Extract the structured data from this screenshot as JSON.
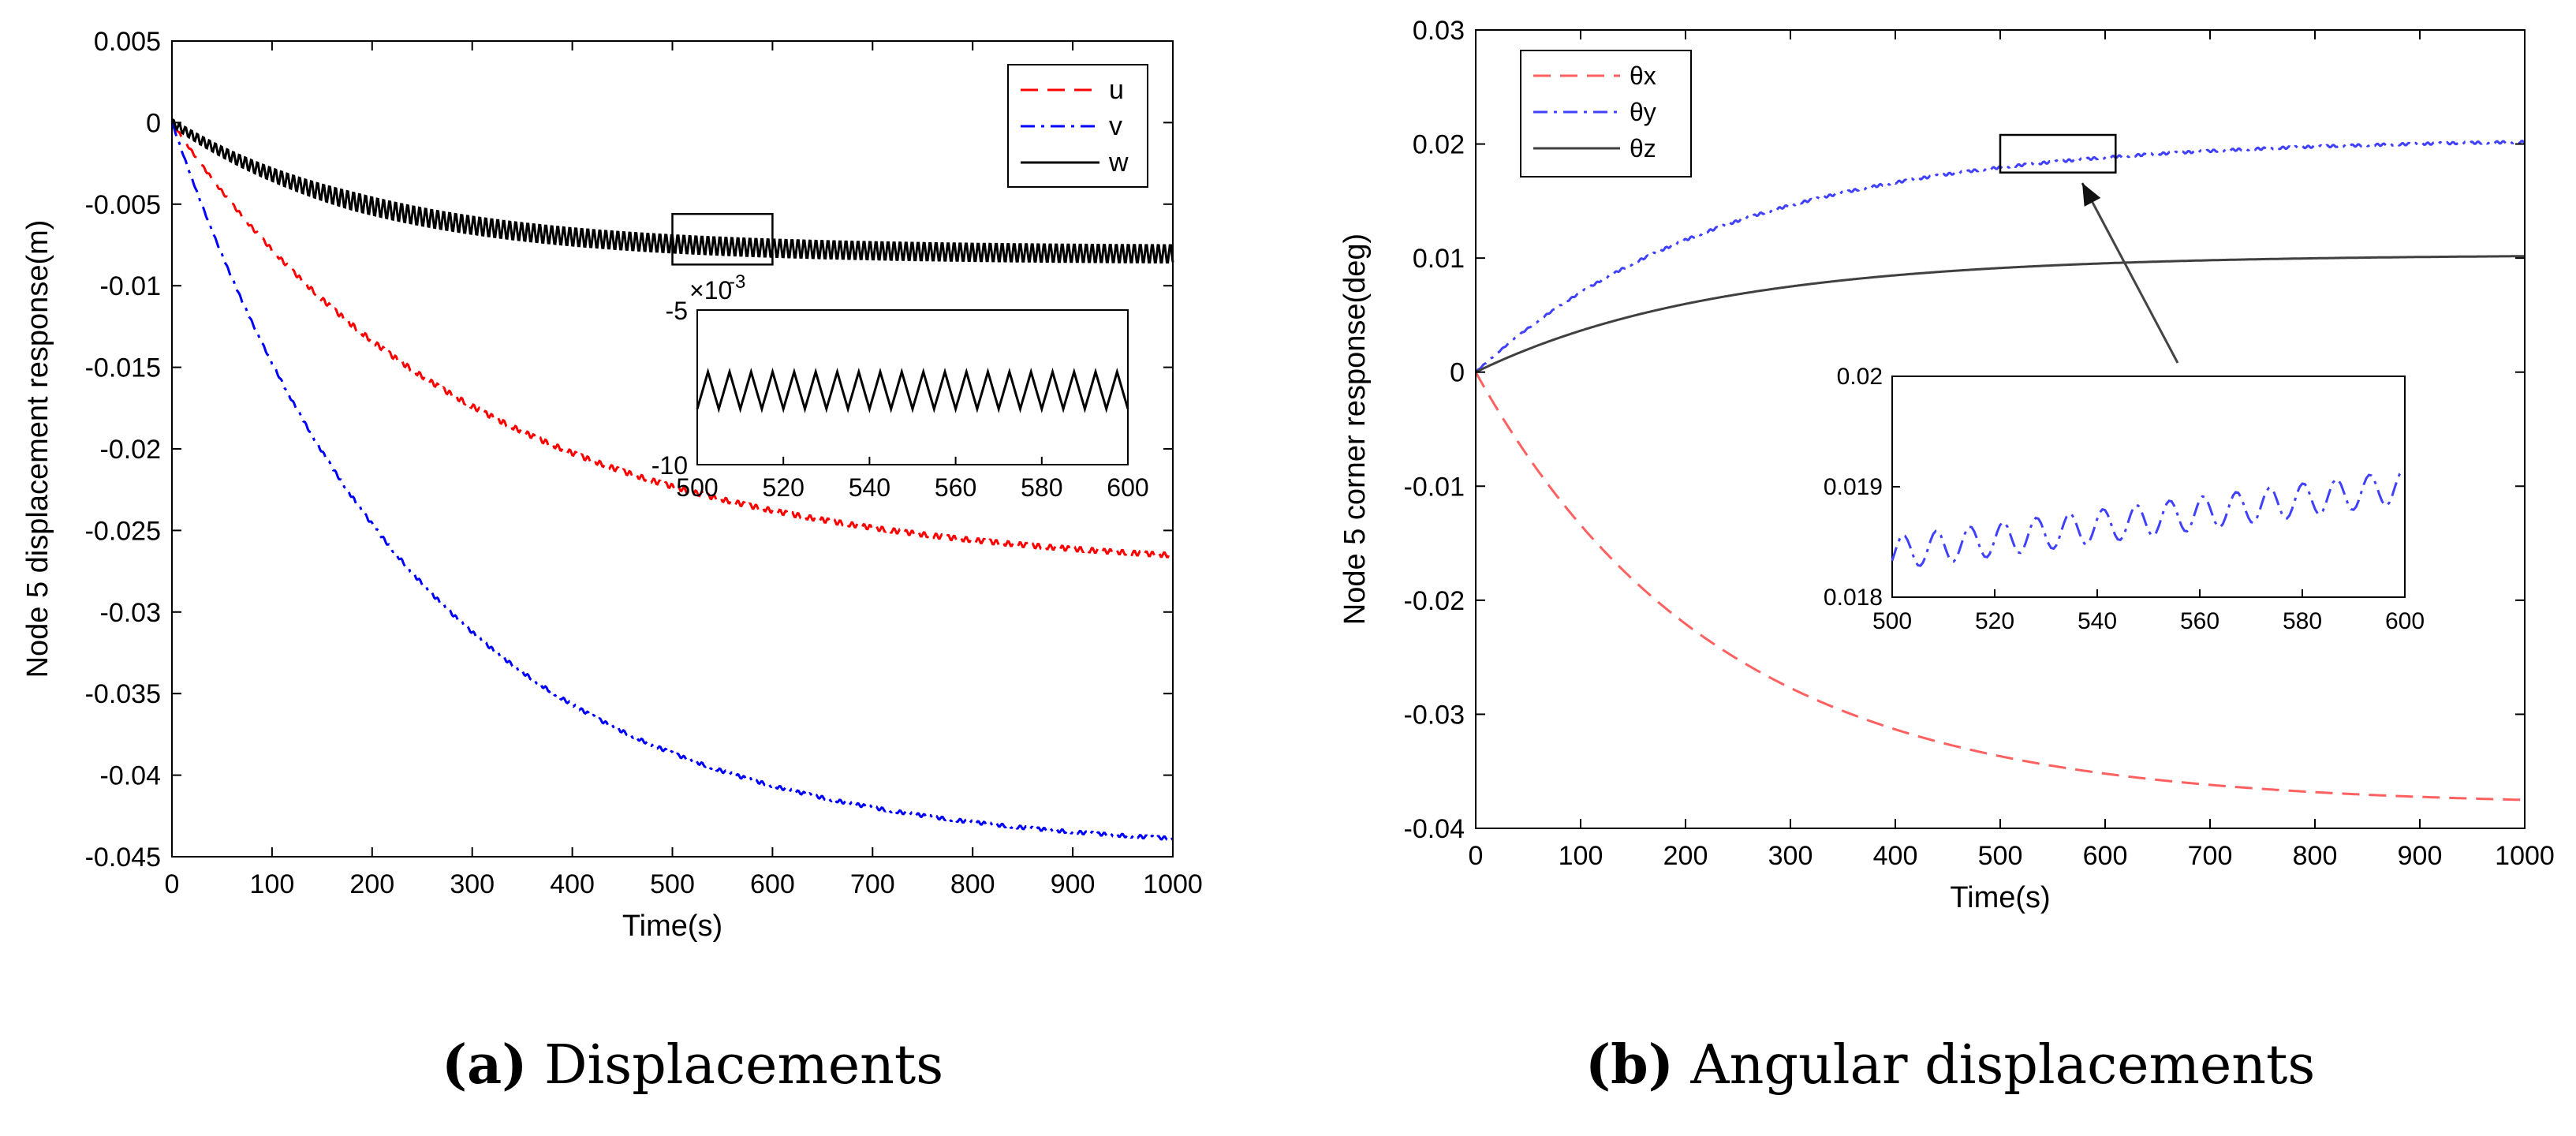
{
  "chart_data": [
    {
      "type": "line",
      "title": "",
      "xlabel": "Time(s)",
      "ylabel": "Node 5 displacement response(m)",
      "xlim": [
        0,
        1000
      ],
      "ylim": [
        -0.045,
        0.005
      ],
      "xticks": [
        0,
        100,
        200,
        300,
        400,
        500,
        600,
        700,
        800,
        900,
        1000
      ],
      "xtick_labels": [
        "0",
        "100",
        "200",
        "300",
        "400",
        "500",
        "600",
        "700",
        "800",
        "900",
        "1000"
      ],
      "yticks": [
        0.005,
        0,
        -0.005,
        -0.01,
        -0.015,
        -0.02,
        -0.025,
        -0.03,
        -0.035,
        -0.04,
        -0.045
      ],
      "ytick_labels": [
        "0.005",
        "0",
        "-0.005",
        "-0.01",
        "-0.015",
        "-0.02",
        "-0.025",
        "-0.03",
        "-0.035",
        "-0.04",
        "-0.045"
      ],
      "legend": [
        "u",
        "v",
        "w"
      ],
      "legend_position": "top-right",
      "series": [
        {
          "name": "u",
          "color": "#ff0000",
          "dash": "dashed",
          "start": 0,
          "final": -0.0275,
          "tau": 300,
          "osc_amp": 0.00015,
          "osc_period": 6
        },
        {
          "name": "v",
          "color": "#0000ff",
          "dash": "dashdot",
          "start": 0,
          "final": -0.0447,
          "tau": 250,
          "osc_amp": 0.0001,
          "osc_period": 6
        },
        {
          "name": "w",
          "color": "#000000",
          "dash": "solid",
          "start": 0,
          "final": -0.0081,
          "tau": 200,
          "osc_amp": 0.0006,
          "osc_period": 6
        }
      ],
      "highlight_box": {
        "x_range": [
          500,
          600
        ],
        "y_range": [
          -0.0087,
          -0.0056
        ]
      },
      "inset": {
        "xlim": [
          500,
          600
        ],
        "ylim": [
          -10,
          -5
        ],
        "xticks": [
          500,
          520,
          540,
          560,
          580,
          600
        ],
        "xtick_labels": [
          "500",
          "520",
          "540",
          "560",
          "580",
          "600"
        ],
        "ytick_labels": [
          "-5",
          "-10"
        ],
        "exponent_label": "×10",
        "exponent_power": "-3",
        "series": "w",
        "center": -7.6,
        "amp": 0.6,
        "period": 5
      }
    },
    {
      "type": "line",
      "title": "",
      "xlabel": "Time(s)",
      "ylabel": "Node 5 corner response(deg)",
      "xlim": [
        0,
        1000
      ],
      "ylim": [
        -0.04,
        0.03
      ],
      "xticks": [
        0,
        100,
        200,
        300,
        400,
        500,
        600,
        700,
        800,
        900,
        1000
      ],
      "xtick_labels": [
        "0",
        "100",
        "200",
        "300",
        "400",
        "500",
        "600",
        "700",
        "800",
        "900",
        "1000"
      ],
      "yticks": [
        0.03,
        0.02,
        0.01,
        0,
        -0.01,
        -0.02,
        -0.03,
        -0.04
      ],
      "ytick_labels": [
        "0.03",
        "0.02",
        "0.01",
        "0",
        "-0.01",
        "-0.02",
        "-0.03",
        "-0.04"
      ],
      "legend": [
        "θx",
        "θy",
        "θz"
      ],
      "legend_position": "top-left",
      "series": [
        {
          "name": "θx",
          "color": "#ff6060",
          "dash": "dashed",
          "start": 0,
          "final": -0.038,
          "tau": 230,
          "osc_amp": 0,
          "osc_period": 6
        },
        {
          "name": "θy",
          "color": "#4040ff",
          "dash": "dashdot",
          "start": 0,
          "final": 0.0205,
          "tau": 240,
          "osc_amp": 0.0001,
          "osc_period": 6
        },
        {
          "name": "θz",
          "color": "#404040",
          "dash": "solid",
          "start": 0,
          "final": 0.0103,
          "tau": 230,
          "osc_amp": 0,
          "osc_period": 6
        }
      ],
      "highlight_box": {
        "x_range": [
          500,
          610
        ],
        "y_range": [
          0.0175,
          0.0208
        ]
      },
      "inset": {
        "xlim": [
          500,
          600
        ],
        "ylim": [
          0.018,
          0.02
        ],
        "xticks": [
          500,
          520,
          540,
          560,
          580,
          600
        ],
        "xtick_labels": [
          "500",
          "520",
          "540",
          "560",
          "580",
          "600"
        ],
        "yticks": [
          0.018,
          0.019,
          0.02
        ],
        "ytick_labels": [
          "0.018",
          "0.019",
          "0.02"
        ],
        "series": "θy",
        "start": 0.0184,
        "end": 0.019,
        "amp": 0.00015,
        "period": 6.5
      }
    }
  ],
  "captions": [
    {
      "letter": "(a)",
      "text": " Displacements"
    },
    {
      "letter": "(b)",
      "text": " Angular displacements"
    }
  ]
}
